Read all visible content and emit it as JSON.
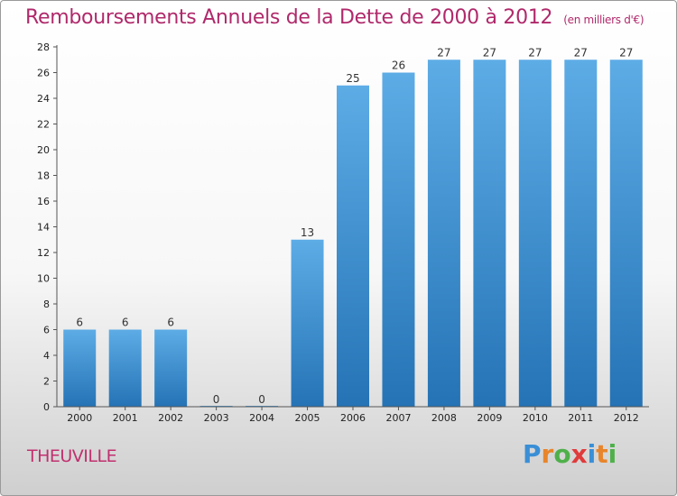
{
  "title": "Remboursements Annuels de la Dette de 2000 à 2012",
  "subtitle": "(en milliers d'€)",
  "commune": "THEUVILLE",
  "logo": {
    "letters": [
      "P",
      "r",
      "o",
      "x",
      "i",
      "t",
      "i"
    ],
    "colors": [
      "#3a8fd6",
      "#e8852a",
      "#4fb04a",
      "#e03a3a",
      "#3a8fd6",
      "#e8852a",
      "#4fb04a"
    ]
  },
  "colors": {
    "bar_top": "#5dace6",
    "bar_bottom": "#2573b5",
    "title": "#b0296b"
  },
  "chart_data": {
    "type": "bar",
    "categories": [
      "2000",
      "2001",
      "2002",
      "2003",
      "2004",
      "2005",
      "2006",
      "2007",
      "2008",
      "2009",
      "2010",
      "2011",
      "2012"
    ],
    "values": [
      6,
      6,
      6,
      0,
      0,
      13,
      25,
      26,
      27,
      27,
      27,
      27,
      27
    ],
    "data_labels": [
      "6",
      "6",
      "6",
      "0",
      "0",
      "13",
      "25",
      "26",
      "27",
      "27",
      "27",
      "27",
      "27"
    ],
    "ylim": [
      0,
      28
    ],
    "yticks": [
      0,
      2,
      4,
      6,
      8,
      10,
      12,
      14,
      16,
      18,
      20,
      22,
      24,
      26,
      28
    ],
    "grid": false,
    "legend": "none"
  }
}
